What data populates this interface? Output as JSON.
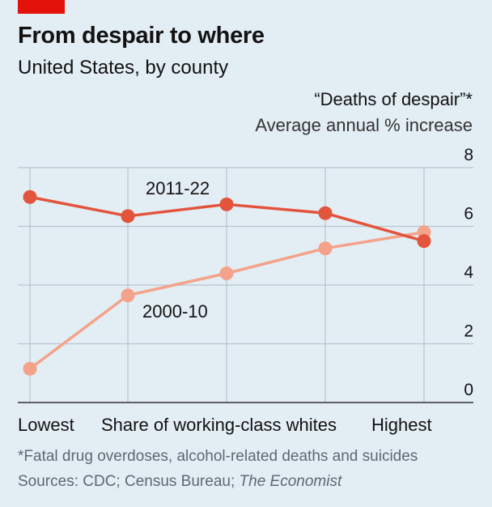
{
  "header": {
    "title": "From despair to where",
    "subtitle": "United States, by county"
  },
  "axis": {
    "ytitle_line1": "“Deaths of despair”*",
    "ytitle_line2": "Average annual % increase",
    "x_low": "Lowest",
    "x_title": "Share of working-class whites",
    "x_high": "Highest"
  },
  "footer": {
    "footnote": "*Fatal drug overdoses, alcohol-related deaths and suicides",
    "sources_prefix": "Sources: CDC; Census Bureau; ",
    "sources_italic": "The Economist"
  },
  "colors": {
    "series_2011": "#e3543c",
    "series_2000": "#f4a28a",
    "grid": "#b7c6cf",
    "axis": "#333333"
  },
  "chart_data": {
    "type": "line",
    "x": [
      1,
      2,
      3,
      4,
      5
    ],
    "ylim": [
      0,
      8
    ],
    "yticks": [
      "0",
      "2",
      "4",
      "6",
      "8"
    ],
    "grid": true,
    "series": [
      {
        "name": "2011-22",
        "values": [
          7.0,
          6.35,
          6.75,
          6.45,
          5.5
        ]
      },
      {
        "name": "2000-10",
        "values": [
          1.15,
          3.65,
          4.4,
          5.25,
          5.8
        ]
      }
    ]
  }
}
